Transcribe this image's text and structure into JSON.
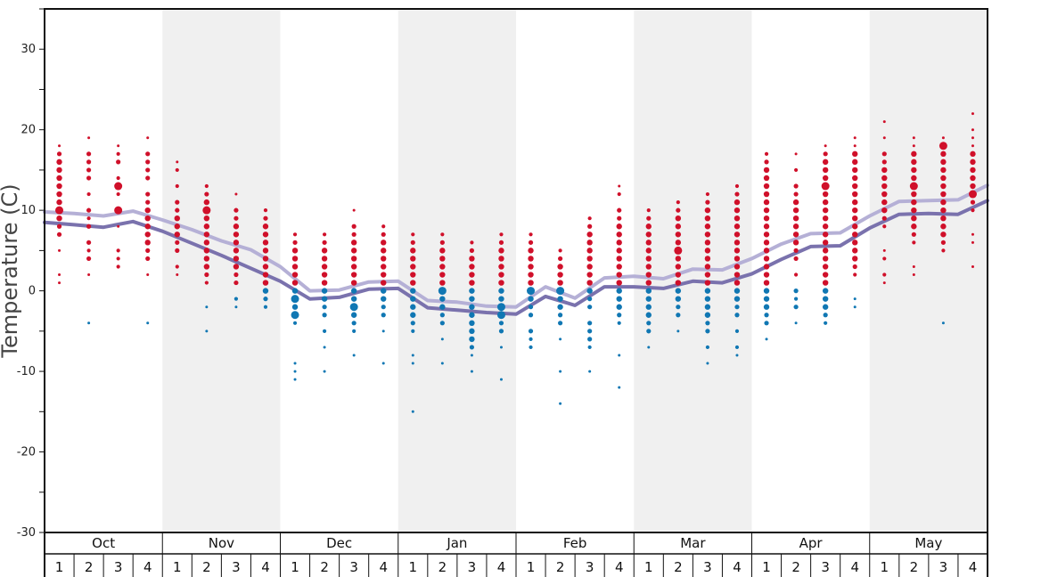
{
  "chart_data": {
    "type": "scatter",
    "ylabel": "Temperature (C)",
    "ylim": [
      -30,
      35
    ],
    "yticks": [
      -30,
      -20,
      -10,
      0,
      10,
      20,
      30
    ],
    "grid": false,
    "months": [
      "Oct",
      "Nov",
      "Dec",
      "Jan",
      "Feb",
      "Mar",
      "Apr",
      "May"
    ],
    "weeks": [
      "1",
      "2",
      "3",
      "4"
    ],
    "colors": {
      "above_zero": "#d0102a",
      "below_zero": "#1077b3",
      "line_light": "#b5b0d6",
      "line_dark": "#7a72ad",
      "band": "#f0f0f0"
    },
    "lines": [
      {
        "style": "light",
        "values": [
          9.8,
          9.6,
          9.3,
          9.9,
          8.8,
          7.6,
          6.2,
          5.1,
          3.0,
          0.0,
          0.1,
          1.1,
          1.2,
          -1.2,
          -1.4,
          -1.9,
          -2.0,
          0.5,
          -0.9,
          1.6,
          1.8,
          1.5,
          2.7,
          2.6,
          4.0,
          5.8,
          7.1,
          7.2,
          9.3,
          11.1,
          11.2,
          11.3,
          13.1
        ]
      },
      {
        "style": "dark",
        "values": [
          8.5,
          8.2,
          7.9,
          8.6,
          7.4,
          5.9,
          4.4,
          2.8,
          1.2,
          -1.0,
          -0.8,
          0.2,
          0.3,
          -2.1,
          -2.4,
          -2.7,
          -2.9,
          -0.7,
          -1.8,
          0.5,
          0.5,
          0.3,
          1.2,
          1.0,
          2.1,
          3.9,
          5.5,
          5.6,
          7.8,
          9.5,
          9.6,
          9.5,
          11.2
        ]
      }
    ],
    "points": [
      {
        "month": 1,
        "week": 1,
        "t": [
          18,
          17,
          16,
          15,
          14,
          13,
          12,
          11,
          10,
          9,
          8,
          7,
          5,
          2,
          1
        ]
      },
      {
        "month": 1,
        "week": 2,
        "t": [
          19,
          17,
          16,
          15,
          14,
          12,
          10,
          9,
          8,
          6,
          5,
          4,
          2,
          -4
        ]
      },
      {
        "month": 1,
        "week": 3,
        "t": [
          18,
          17,
          16,
          14,
          12,
          10,
          8,
          5,
          4,
          3
        ]
      },
      {
        "month": 1,
        "week": 4,
        "t": [
          19,
          17,
          16,
          15,
          14,
          12,
          11,
          10,
          9,
          8,
          7,
          6,
          5,
          4,
          2,
          -4
        ]
      },
      {
        "month": 2,
        "week": 1,
        "t": [
          16,
          15,
          13,
          11,
          10,
          9,
          8,
          7,
          6,
          5,
          3,
          2
        ]
      },
      {
        "month": 2,
        "week": 2,
        "t": [
          13,
          12,
          11,
          10,
          9,
          8,
          7,
          6,
          5,
          4,
          3,
          2,
          1,
          -2,
          -5
        ]
      },
      {
        "month": 2,
        "week": 3,
        "t": [
          12,
          10,
          9,
          8,
          7,
          6,
          5,
          4,
          3,
          2,
          1,
          -1,
          -2
        ]
      },
      {
        "month": 2,
        "week": 4,
        "t": [
          10,
          9,
          8,
          7,
          6,
          5,
          4,
          3,
          2,
          1,
          0,
          -1,
          -2
        ]
      },
      {
        "month": 3,
        "week": 1,
        "t": [
          7,
          6,
          5,
          4,
          3,
          2,
          1,
          0,
          -1,
          -2,
          -3,
          -4,
          -9,
          -10,
          -11
        ]
      },
      {
        "month": 3,
        "week": 2,
        "t": [
          7,
          6,
          5,
          4,
          3,
          2,
          1,
          0,
          -1,
          -2,
          -3,
          -5,
          -7,
          -10
        ]
      },
      {
        "month": 3,
        "week": 3,
        "t": [
          10,
          8,
          7,
          6,
          5,
          4,
          3,
          2,
          1,
          0,
          -1,
          -2,
          -3,
          -4,
          -5,
          -8
        ]
      },
      {
        "month": 3,
        "week": 4,
        "t": [
          8,
          7,
          6,
          5,
          4,
          3,
          2,
          1,
          0,
          -1,
          -2,
          -3,
          -5,
          -9
        ]
      },
      {
        "month": 4,
        "week": 1,
        "t": [
          7,
          6,
          5,
          4,
          3,
          2,
          1,
          0,
          -1,
          -2,
          -3,
          -4,
          -5,
          -8,
          -9,
          -15
        ]
      },
      {
        "month": 4,
        "week": 2,
        "t": [
          7,
          6,
          5,
          4,
          3,
          2,
          1,
          0,
          -1,
          -2,
          -3,
          -4,
          -6,
          -9
        ]
      },
      {
        "month": 4,
        "week": 3,
        "t": [
          6,
          5,
          4,
          3,
          2,
          1,
          0,
          -1,
          -2,
          -3,
          -4,
          -5,
          -6,
          -7,
          -8,
          -10
        ]
      },
      {
        "month": 4,
        "week": 4,
        "t": [
          7,
          6,
          5,
          4,
          3,
          2,
          1,
          0,
          -1,
          -2,
          -3,
          -4,
          -5,
          -7,
          -11
        ]
      },
      {
        "month": 5,
        "week": 1,
        "t": [
          7,
          6,
          5,
          4,
          3,
          2,
          1,
          0,
          -1,
          -2,
          -3,
          -5,
          -6,
          -7
        ]
      },
      {
        "month": 5,
        "week": 2,
        "t": [
          5,
          4,
          3,
          2,
          1,
          0,
          -1,
          -2,
          -3,
          -4,
          -6,
          -10,
          -14
        ]
      },
      {
        "month": 5,
        "week": 3,
        "t": [
          9,
          8,
          7,
          6,
          5,
          4,
          3,
          2,
          1,
          0,
          -1,
          -2,
          -4,
          -5,
          -6,
          -7,
          -10
        ]
      },
      {
        "month": 5,
        "week": 4,
        "t": [
          13,
          12,
          10,
          9,
          8,
          7,
          6,
          5,
          4,
          3,
          2,
          1,
          0,
          -1,
          -2,
          -3,
          -4,
          -8,
          -12
        ]
      },
      {
        "month": 6,
        "week": 1,
        "t": [
          10,
          9,
          8,
          7,
          6,
          5,
          4,
          3,
          2,
          1,
          0,
          -1,
          -2,
          -3,
          -4,
          -5,
          -7
        ]
      },
      {
        "month": 6,
        "week": 2,
        "t": [
          11,
          10,
          9,
          8,
          7,
          6,
          5,
          4,
          3,
          2,
          1,
          0,
          -1,
          -2,
          -3,
          -5
        ]
      },
      {
        "month": 6,
        "week": 3,
        "t": [
          12,
          11,
          10,
          9,
          8,
          7,
          6,
          5,
          4,
          3,
          2,
          1,
          0,
          -1,
          -2,
          -3,
          -4,
          -5,
          -7,
          -9
        ]
      },
      {
        "month": 6,
        "week": 4,
        "t": [
          13,
          12,
          11,
          10,
          9,
          8,
          7,
          6,
          5,
          4,
          3,
          2,
          1,
          0,
          -1,
          -2,
          -3,
          -5,
          -7,
          -8
        ]
      },
      {
        "month": 7,
        "week": 1,
        "t": [
          17,
          16,
          15,
          14,
          13,
          12,
          11,
          10,
          9,
          8,
          7,
          6,
          5,
          4,
          3,
          2,
          1,
          0,
          -1,
          -2,
          -3,
          -4,
          -6
        ]
      },
      {
        "month": 7,
        "week": 2,
        "t": [
          17,
          15,
          13,
          12,
          11,
          10,
          9,
          8,
          7,
          6,
          5,
          4,
          2,
          0,
          -1,
          -2,
          -4
        ]
      },
      {
        "month": 7,
        "week": 3,
        "t": [
          18,
          17,
          16,
          15,
          14,
          13,
          12,
          11,
          10,
          9,
          8,
          7,
          6,
          5,
          4,
          3,
          2,
          1,
          0,
          -1,
          -2,
          -3,
          -4
        ]
      },
      {
        "month": 7,
        "week": 4,
        "t": [
          19,
          18,
          17,
          16,
          15,
          14,
          13,
          12,
          11,
          10,
          9,
          8,
          7,
          6,
          5,
          4,
          3,
          2,
          -1,
          -2
        ]
      },
      {
        "month": 8,
        "week": 1,
        "t": [
          21,
          19,
          17,
          16,
          15,
          14,
          13,
          12,
          11,
          10,
          9,
          8,
          5,
          4,
          2,
          1
        ]
      },
      {
        "month": 8,
        "week": 2,
        "t": [
          19,
          18,
          17,
          16,
          15,
          14,
          13,
          12,
          11,
          10,
          9,
          8,
          7,
          6,
          3,
          2
        ]
      },
      {
        "month": 8,
        "week": 3,
        "t": [
          19,
          18,
          17,
          16,
          15,
          14,
          13,
          12,
          11,
          10,
          9,
          8,
          7,
          6,
          5,
          -4
        ]
      },
      {
        "month": 8,
        "week": 4,
        "t": [
          22,
          20,
          19,
          18,
          17,
          16,
          15,
          14,
          13,
          12,
          11,
          10,
          7,
          6,
          3
        ]
      }
    ],
    "emphasis": [
      {
        "month": 1,
        "week": 1,
        "t": 10
      },
      {
        "month": 1,
        "week": 3,
        "t": 13
      },
      {
        "month": 1,
        "week": 3,
        "t": 10
      },
      {
        "month": 2,
        "week": 2,
        "t": 10
      },
      {
        "month": 3,
        "week": 1,
        "t": -1
      },
      {
        "month": 3,
        "week": 1,
        "t": -3
      },
      {
        "month": 3,
        "week": 3,
        "t": -2
      },
      {
        "month": 4,
        "week": 2,
        "t": 0
      },
      {
        "month": 4,
        "week": 4,
        "t": -2
      },
      {
        "month": 4,
        "week": 4,
        "t": -3
      },
      {
        "month": 5,
        "week": 1,
        "t": 0
      },
      {
        "month": 5,
        "week": 2,
        "t": 0
      },
      {
        "month": 6,
        "week": 2,
        "t": 5
      },
      {
        "month": 7,
        "week": 3,
        "t": 13
      },
      {
        "month": 8,
        "week": 2,
        "t": 13
      },
      {
        "month": 8,
        "week": 3,
        "t": 18
      },
      {
        "month": 8,
        "week": 4,
        "t": 12
      }
    ]
  }
}
